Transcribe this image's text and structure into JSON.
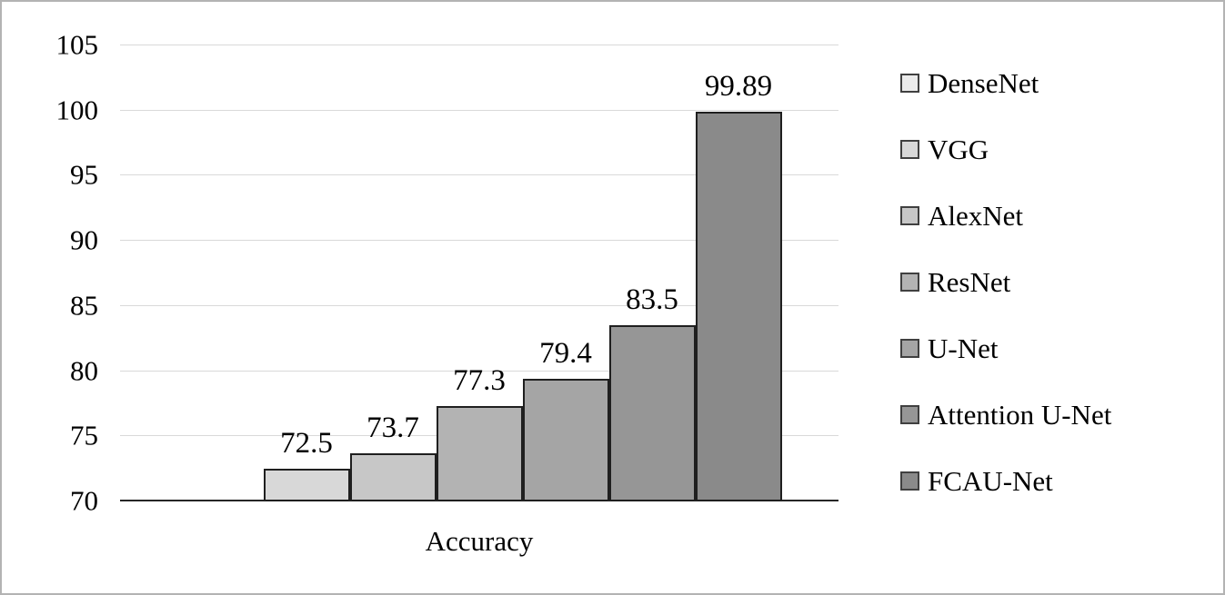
{
  "chart_data": {
    "type": "bar",
    "title": "",
    "xlabel": "Accuracy",
    "ylabel": "",
    "ylim": [
      70,
      105
    ],
    "yticks": [
      70,
      75,
      80,
      85,
      90,
      95,
      100,
      105
    ],
    "grid": true,
    "legend_position": "right",
    "categories": [
      "Accuracy"
    ],
    "series": [
      {
        "name": "DenseNet",
        "value": 70,
        "label": "",
        "color": "#ebebeb"
      },
      {
        "name": "VGG",
        "value": 72.5,
        "label": "72.5",
        "color": "#d8d8d8"
      },
      {
        "name": "AlexNet",
        "value": 73.7,
        "label": "73.7",
        "color": "#c7c7c7"
      },
      {
        "name": "ResNet",
        "value": 77.3,
        "label": "77.3",
        "color": "#b3b3b3"
      },
      {
        "name": "U-Net",
        "value": 79.4,
        "label": "79.4",
        "color": "#a5a5a5"
      },
      {
        "name": "Attention U-Net",
        "value": 83.5,
        "label": "83.5",
        "color": "#969696"
      },
      {
        "name": "FCAU-Net",
        "value": 99.89,
        "label": "99.89",
        "color": "#8a8a8a"
      }
    ],
    "colors": {
      "bar_border": "#1f1f1f",
      "gridline": "#d9d9d9",
      "axis_line": "#262626",
      "text": "#000000"
    }
  }
}
